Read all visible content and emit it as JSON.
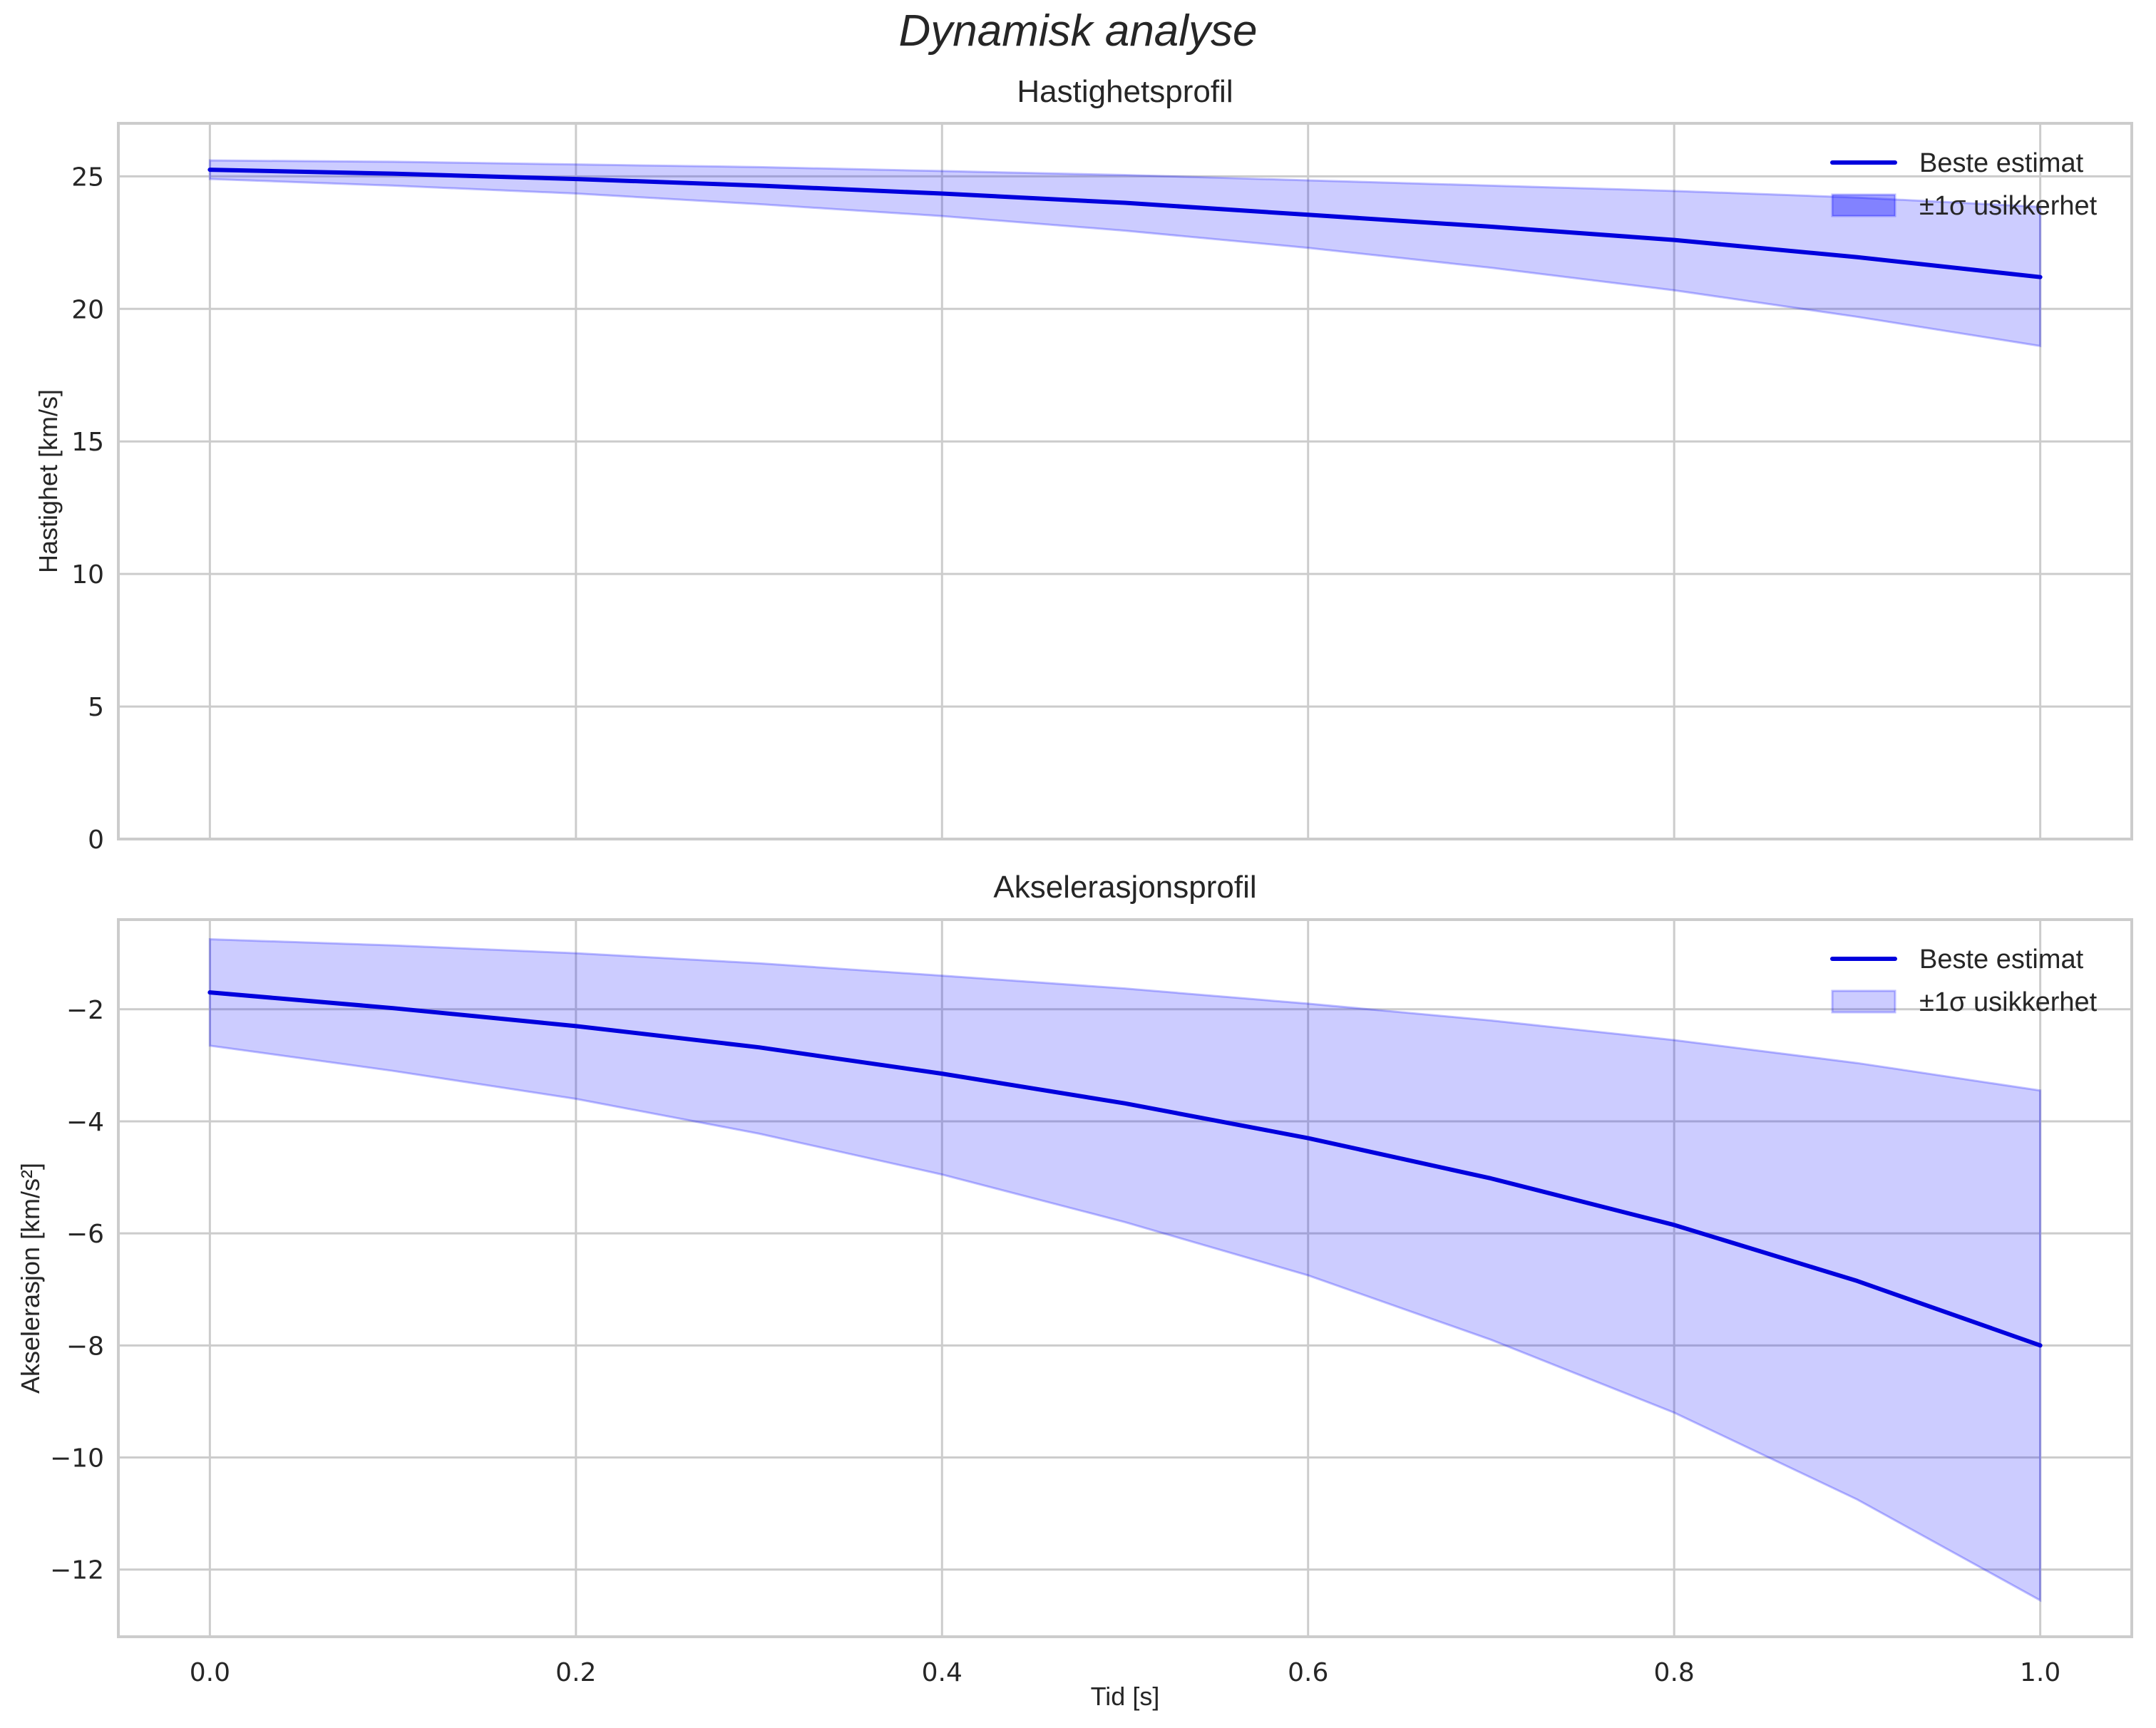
{
  "figure": {
    "suptitle": "Dynamisk analyse",
    "xlabel": "Tid [s]"
  },
  "colors": {
    "line": "#0000dd",
    "band_fill": "#0000ff",
    "band_alpha": 0.2,
    "grid": "#cccccc",
    "text": "#262626"
  },
  "chart_data": [
    {
      "type": "line",
      "title": "Hastighetsprofil",
      "xlabel": "",
      "ylabel": "Hastighet [km/s]",
      "xlim": [
        -0.05,
        1.05
      ],
      "ylim": [
        0,
        27
      ],
      "xticks": [
        "0.0",
        "0.2",
        "0.4",
        "0.6",
        "0.8",
        "1.0"
      ],
      "yticks": [
        "0",
        "5",
        "10",
        "15",
        "20",
        "25"
      ],
      "grid": true,
      "legend": {
        "position": "upper right",
        "entries": [
          "Beste estimat",
          "±1σ usikkerhet"
        ]
      },
      "x": [
        0.0,
        0.1,
        0.2,
        0.3,
        0.4,
        0.5,
        0.6,
        0.7,
        0.8,
        0.9,
        1.0
      ],
      "series": [
        {
          "name": "Beste estimat",
          "kind": "line",
          "values": [
            25.25,
            25.1,
            24.9,
            24.65,
            24.35,
            24.0,
            23.55,
            23.1,
            22.6,
            21.95,
            21.2
          ]
        },
        {
          "name": "±1σ usikkerhet",
          "kind": "band",
          "upper": [
            25.6,
            25.55,
            25.45,
            25.35,
            25.2,
            25.05,
            24.85,
            24.65,
            24.45,
            24.2,
            23.85
          ],
          "lower": [
            24.9,
            24.65,
            24.35,
            23.95,
            23.5,
            22.95,
            22.3,
            21.55,
            20.7,
            19.7,
            18.6
          ]
        }
      ]
    },
    {
      "type": "line",
      "title": "Akselerasjonsprofil",
      "xlabel": "Tid [s]",
      "ylabel": "Akselerasjon [km/s²]",
      "xlim": [
        -0.05,
        1.05
      ],
      "ylim": [
        -13.2,
        -0.4
      ],
      "xticks": [
        "0.0",
        "0.2",
        "0.4",
        "0.6",
        "0.8",
        "1.0"
      ],
      "yticks": [
        "−2",
        "−4",
        "−6",
        "−8",
        "−10",
        "−12"
      ],
      "grid": true,
      "legend": {
        "position": "upper right",
        "entries": [
          "Beste estimat",
          "±1σ usikkerhet"
        ]
      },
      "x": [
        0.0,
        0.1,
        0.2,
        0.3,
        0.4,
        0.5,
        0.6,
        0.7,
        0.8,
        0.9,
        1.0
      ],
      "series": [
        {
          "name": "Beste estimat",
          "kind": "line",
          "values": [
            -1.7,
            -1.98,
            -2.3,
            -2.68,
            -3.15,
            -3.68,
            -4.3,
            -5.02,
            -5.85,
            -6.85,
            -8.0
          ]
        },
        {
          "name": "±1σ usikkerhet",
          "kind": "band",
          "upper": [
            -0.75,
            -0.86,
            -1.0,
            -1.18,
            -1.4,
            -1.63,
            -1.9,
            -2.2,
            -2.55,
            -2.96,
            -3.45
          ],
          "lower": [
            -2.65,
            -3.1,
            -3.6,
            -4.22,
            -4.95,
            -5.8,
            -6.75,
            -7.9,
            -9.2,
            -10.75,
            -12.55
          ]
        }
      ]
    }
  ]
}
